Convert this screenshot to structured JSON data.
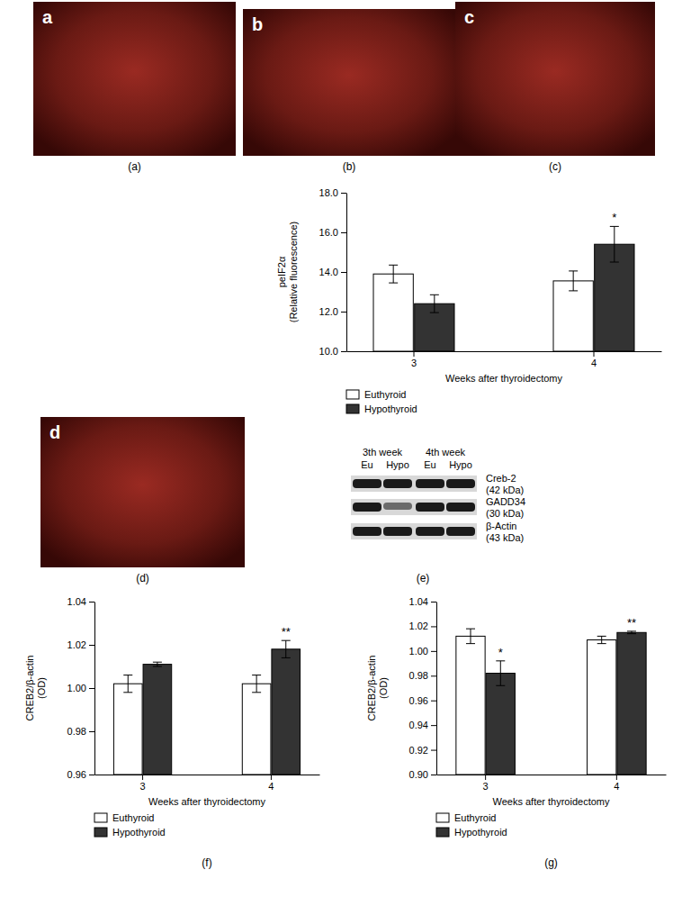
{
  "chart_data": [
    {
      "type": "bar",
      "x_label": "Weeks after thyroidectomy",
      "y_label": [
        "peIF2α",
        "(Relative fluorescence)"
      ],
      "categories": [
        "3",
        "4"
      ],
      "series": [
        {
          "name": "Euthyroid",
          "color": "#ffffff",
          "values": [
            13.9,
            13.55
          ],
          "errors": [
            0.45,
            0.5
          ],
          "significance": [
            null,
            null
          ]
        },
        {
          "name": "Hypothyroid",
          "color": "#333333",
          "values": [
            12.4,
            15.4
          ],
          "errors": [
            0.45,
            0.9
          ],
          "significance": [
            null,
            "*"
          ]
        }
      ],
      "ylim": [
        10,
        18
      ],
      "yticks": [
        {
          "value": 10,
          "label": "10.0"
        },
        {
          "value": 12,
          "label": "12.0"
        },
        {
          "value": 14,
          "label": "14.0"
        },
        {
          "value": 16,
          "label": "16.0"
        },
        {
          "value": 18,
          "label": "18.0"
        }
      ],
      "legend": "bottom"
    },
    {
      "type": "bar",
      "caption": "(f)",
      "x_label": "Weeks after thyroidectomy",
      "y_label": [
        "CREB2/β-actin",
        "(OD)"
      ],
      "categories": [
        "3",
        "4"
      ],
      "series": [
        {
          "name": "Euthyroid",
          "color": "#ffffff",
          "values": [
            1.002,
            1.002
          ],
          "errors": [
            0.004,
            0.004
          ],
          "significance": [
            null,
            null
          ]
        },
        {
          "name": "Hypothyroid",
          "color": "#333333",
          "values": [
            1.011,
            1.018
          ],
          "errors": [
            0.001,
            0.004
          ],
          "significance": [
            null,
            "**"
          ]
        }
      ],
      "ylim": [
        0.96,
        1.04
      ],
      "yticks": [
        0.96,
        0.98,
        {
          "value": 1,
          "label": "1.00"
        },
        1.02,
        1.04
      ],
      "legend": "bottom"
    },
    {
      "type": "bar",
      "caption": "(g)",
      "x_label": "Weeks after thyroidectomy",
      "y_label": [
        "CREB2/β-actin",
        "(OD)"
      ],
      "categories": [
        "3",
        "4"
      ],
      "series": [
        {
          "name": "Euthyroid",
          "color": "#ffffff",
          "values": [
            1.012,
            1.009
          ],
          "errors": [
            0.006,
            0.003
          ],
          "significance": [
            null,
            null
          ]
        },
        {
          "name": "Hypothyroid",
          "color": "#333333",
          "values": [
            0.982,
            1.015
          ],
          "errors": [
            0.01,
            0.001
          ],
          "significance": [
            "*",
            "**"
          ]
        }
      ],
      "ylim": [
        0.9,
        1.04
      ],
      "yticks": [
        {
          "value": 0.9,
          "label": "0.90"
        },
        0.92,
        0.94,
        0.96,
        0.98,
        {
          "value": 1,
          "label": "1.00"
        },
        1.02,
        1.04
      ],
      "legend": "bottom"
    }
  ],
  "images": [
    {
      "letter": "a",
      "caption": "(a)"
    },
    {
      "letter": "b",
      "caption": "(b)"
    },
    {
      "letter": "c",
      "caption": "(c)"
    },
    {
      "letter": "d",
      "caption": "(d)"
    }
  ],
  "blot": {
    "caption": "(e)",
    "headers": [
      "3th week",
      "4th week"
    ],
    "lanes": [
      "Eu",
      "Hypo",
      "Eu",
      "Hypo"
    ],
    "rows": [
      {
        "label": "Creb-2",
        "size": "(42 kDa)"
      },
      {
        "label": "GADD34",
        "size": "(30 kDa)"
      },
      {
        "label": "β-Actin",
        "size": "(43 kDa)"
      }
    ]
  }
}
